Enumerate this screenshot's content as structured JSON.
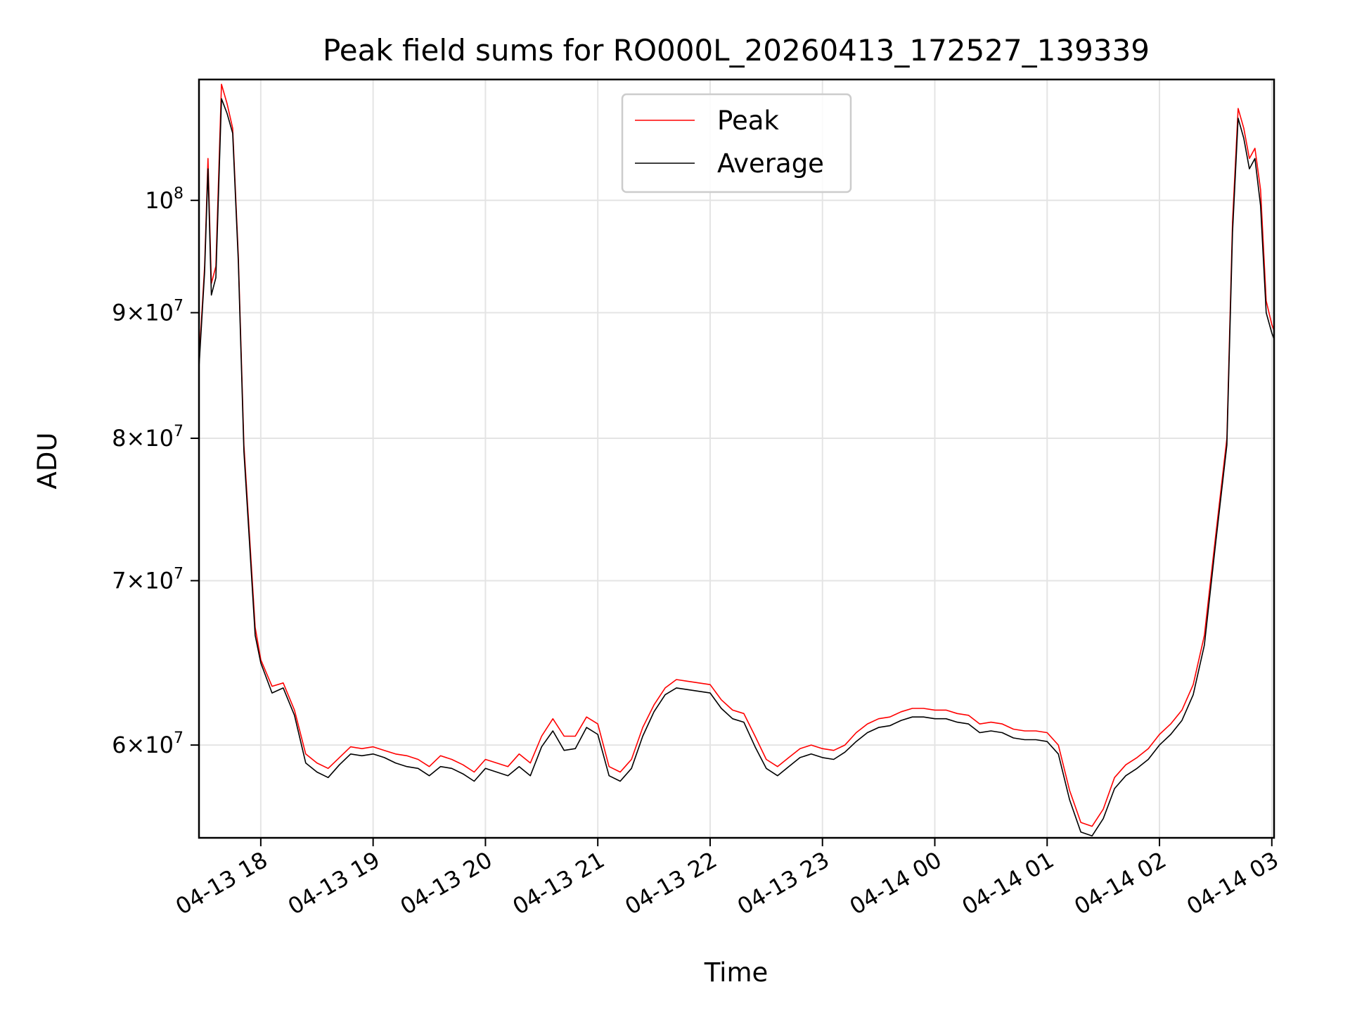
{
  "chart_data": {
    "type": "line",
    "title": "Peak field sums for RO000L_20260413_172527_139339",
    "xlabel": "Time",
    "ylabel": "ADU",
    "yscale": "log",
    "ylim": [
      55000000,
      112000000
    ],
    "xlim": [
      17.45,
      27.02
    ],
    "grid": true,
    "legend_position": "upper-center",
    "x_ticks": [
      {
        "value": 18,
        "label": "04-13 18"
      },
      {
        "value": 19,
        "label": "04-13 19"
      },
      {
        "value": 20,
        "label": "04-13 20"
      },
      {
        "value": 21,
        "label": "04-13 21"
      },
      {
        "value": 22,
        "label": "04-13 22"
      },
      {
        "value": 23,
        "label": "04-13 23"
      },
      {
        "value": 24,
        "label": "04-14 00"
      },
      {
        "value": 25,
        "label": "04-14 01"
      },
      {
        "value": 26,
        "label": "04-14 02"
      },
      {
        "value": 27,
        "label": "04-14 03"
      }
    ],
    "y_ticks": [
      {
        "value": 60000000,
        "mantissa": "6",
        "base": "10",
        "exp": "7"
      },
      {
        "value": 70000000,
        "mantissa": "7",
        "base": "10",
        "exp": "7"
      },
      {
        "value": 80000000,
        "mantissa": "8",
        "base": "10",
        "exp": "7"
      },
      {
        "value": 90000000,
        "mantissa": "9",
        "base": "10",
        "exp": "7"
      },
      {
        "value": 100000000,
        "mantissa": "",
        "base": "10",
        "exp": "8"
      }
    ],
    "x": [
      17.45,
      17.5,
      17.53,
      17.56,
      17.6,
      17.65,
      17.7,
      17.75,
      17.8,
      17.85,
      17.9,
      17.95,
      18.0,
      18.1,
      18.2,
      18.3,
      18.4,
      18.5,
      18.6,
      18.7,
      18.8,
      18.9,
      19.0,
      19.1,
      19.2,
      19.3,
      19.4,
      19.5,
      19.6,
      19.7,
      19.8,
      19.9,
      20.0,
      20.1,
      20.2,
      20.3,
      20.4,
      20.5,
      20.6,
      20.7,
      20.8,
      20.9,
      21.0,
      21.1,
      21.2,
      21.3,
      21.4,
      21.5,
      21.6,
      21.7,
      21.8,
      21.9,
      22.0,
      22.1,
      22.2,
      22.3,
      22.4,
      22.5,
      22.6,
      22.7,
      22.8,
      22.9,
      23.0,
      23.1,
      23.2,
      23.3,
      23.4,
      23.5,
      23.6,
      23.7,
      23.8,
      23.9,
      24.0,
      24.1,
      24.2,
      24.3,
      24.4,
      24.5,
      24.6,
      24.7,
      24.8,
      24.9,
      25.0,
      25.1,
      25.2,
      25.3,
      25.4,
      25.5,
      25.6,
      25.7,
      25.8,
      25.9,
      26.0,
      26.1,
      26.2,
      26.3,
      26.4,
      26.5,
      26.6,
      26.65,
      26.7,
      26.75,
      26.8,
      26.85,
      26.9,
      26.95,
      27.0,
      27.02
    ],
    "series": [
      {
        "name": "Peak",
        "color": "#ff0000",
        "values": [
          86000000,
          94000000,
          104000000,
          92500000,
          94000000,
          111500000,
          109500000,
          107000000,
          95000000,
          79500000,
          73000000,
          67000000,
          65000000,
          63400000,
          63600000,
          62000000,
          59500000,
          59000000,
          58700000,
          59300000,
          59900000,
          59800000,
          59900000,
          59700000,
          59500000,
          59400000,
          59200000,
          58800000,
          59400000,
          59200000,
          58900000,
          58500000,
          59200000,
          59000000,
          58800000,
          59500000,
          59000000,
          60500000,
          61500000,
          60500000,
          60500000,
          61600000,
          61200000,
          58800000,
          58500000,
          59200000,
          61000000,
          62300000,
          63300000,
          63800000,
          63700000,
          63600000,
          63500000,
          62600000,
          62000000,
          61800000,
          60500000,
          59200000,
          58800000,
          59300000,
          59800000,
          60000000,
          59800000,
          59700000,
          60000000,
          60700000,
          61200000,
          61500000,
          61600000,
          61900000,
          62100000,
          62100000,
          62000000,
          62000000,
          61800000,
          61700000,
          61200000,
          61300000,
          61200000,
          60900000,
          60800000,
          60800000,
          60700000,
          60000000,
          57500000,
          55800000,
          55600000,
          56500000,
          58200000,
          58900000,
          59300000,
          59800000,
          60600000,
          61200000,
          62000000,
          63500000,
          66500000,
          73000000,
          80000000,
          98000000,
          109000000,
          107000000,
          104000000,
          105000000,
          101000000,
          91000000,
          89000000,
          88500000
        ]
      },
      {
        "name": "Average",
        "color": "#000000",
        "values": [
          85500000,
          93500000,
          103000000,
          91500000,
          93000000,
          110000000,
          108500000,
          106500000,
          94500000,
          79000000,
          72500000,
          66500000,
          64800000,
          63000000,
          63300000,
          61700000,
          59000000,
          58500000,
          58200000,
          58900000,
          59500000,
          59400000,
          59500000,
          59300000,
          59000000,
          58800000,
          58700000,
          58300000,
          58800000,
          58700000,
          58400000,
          58000000,
          58700000,
          58500000,
          58300000,
          58800000,
          58300000,
          59900000,
          60800000,
          59700000,
          59800000,
          61000000,
          60600000,
          58300000,
          58000000,
          58700000,
          60500000,
          61900000,
          62900000,
          63300000,
          63200000,
          63100000,
          63000000,
          62100000,
          61500000,
          61300000,
          59900000,
          58700000,
          58300000,
          58800000,
          59300000,
          59500000,
          59300000,
          59200000,
          59600000,
          60200000,
          60700000,
          61000000,
          61100000,
          61400000,
          61600000,
          61600000,
          61500000,
          61500000,
          61300000,
          61200000,
          60700000,
          60800000,
          60700000,
          60400000,
          60300000,
          60300000,
          60200000,
          59500000,
          57000000,
          55300000,
          55100000,
          56000000,
          57600000,
          58300000,
          58700000,
          59200000,
          60000000,
          60600000,
          61400000,
          62900000,
          65900000,
          72500000,
          79500000,
          97000000,
          108000000,
          106000000,
          103000000,
          104000000,
          99500000,
          90000000,
          88300000,
          87800000
        ]
      }
    ]
  }
}
